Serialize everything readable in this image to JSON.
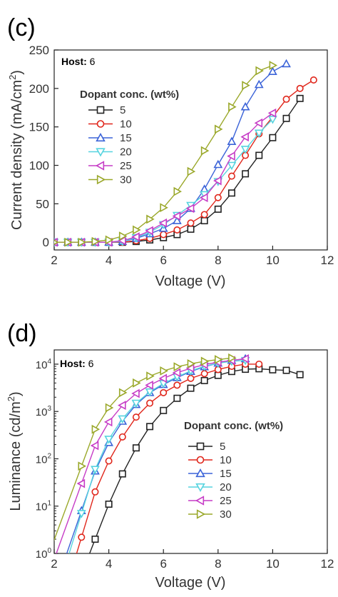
{
  "colors": {
    "5": "#222222",
    "10": "#e0261b",
    "15": "#3b63d8",
    "20": "#57d4df",
    "25": "#c63cc6",
    "30": "#9aa82a"
  },
  "chart_data": [
    {
      "panel": "(c)",
      "type": "line",
      "xlabel": "Voltage (V)",
      "ylabel_main": "Current density (mA/cm",
      "ylabel_sup": "2",
      "ylabel_end": ")",
      "xlim": [
        2,
        12
      ],
      "ylim": [
        -10,
        250
      ],
      "xticks": [
        2,
        4,
        6,
        8,
        10,
        12
      ],
      "yticks": [
        0,
        50,
        100,
        150,
        200,
        250
      ],
      "yscale": "linear",
      "host_label": "Host:",
      "host_value": "6",
      "legend_title": "Dopant conc. (wt%)",
      "series": [
        {
          "name": "5",
          "marker": "square",
          "x": [
            2,
            2.5,
            3,
            3.5,
            4,
            4.5,
            5,
            5.5,
            6,
            6.5,
            7,
            7.5,
            8,
            8.5,
            9,
            9.5,
            10,
            10.5,
            11
          ],
          "y": [
            0,
            0,
            0,
            0,
            0,
            0,
            1,
            3,
            6,
            10,
            17,
            28,
            43,
            64,
            89,
            113,
            136,
            161,
            187
          ]
        },
        {
          "name": "10",
          "marker": "circle",
          "x": [
            2,
            2.5,
            3,
            3.5,
            4,
            4.5,
            5,
            5.5,
            6,
            6.5,
            7,
            7.5,
            8,
            8.5,
            9,
            9.5,
            10,
            10.5,
            11,
            11.5
          ],
          "y": [
            0,
            0,
            0,
            0,
            0,
            0,
            2,
            5,
            10,
            16,
            25,
            36,
            58,
            86,
            113,
            141,
            163,
            186,
            200,
            211
          ]
        },
        {
          "name": "15",
          "marker": "triangle-up",
          "x": [
            2,
            2.5,
            3,
            3.5,
            4,
            4.5,
            5,
            5.5,
            6,
            6.5,
            7,
            7.5,
            8,
            8.5,
            9,
            9.5,
            10,
            10.5
          ],
          "y": [
            0,
            0,
            0,
            0,
            0,
            1,
            5,
            11,
            18,
            28,
            44,
            69,
            101,
            131,
            176,
            205,
            222,
            232
          ]
        },
        {
          "name": "20",
          "marker": "triangle-down",
          "x": [
            2,
            2.5,
            3,
            3.5,
            4,
            4.5,
            5,
            5.5,
            6,
            6.5,
            7,
            7.5,
            8,
            8.5,
            9,
            9.5,
            10
          ],
          "y": [
            0,
            0,
            0,
            0,
            0,
            1,
            6,
            13,
            23,
            35,
            48,
            62,
            79,
            100,
            121,
            142,
            160
          ]
        },
        {
          "name": "25",
          "marker": "triangle-left",
          "x": [
            2,
            2.5,
            3,
            3.5,
            4,
            4.5,
            5,
            5.5,
            6,
            6.5,
            7,
            7.5,
            8,
            8.5,
            9,
            9.5,
            10
          ],
          "y": [
            0,
            0,
            0,
            0,
            0,
            2,
            7,
            15,
            25,
            34,
            44,
            58,
            80,
            112,
            137,
            155,
            168
          ]
        },
        {
          "name": "30",
          "marker": "triangle-right",
          "x": [
            2,
            2.5,
            3,
            3.5,
            4,
            4.5,
            5,
            5.5,
            6,
            6.5,
            7,
            7.5,
            8,
            8.5,
            9,
            9.5,
            10
          ],
          "y": [
            0,
            0,
            0,
            1,
            3,
            8,
            16,
            30,
            45,
            66,
            92,
            119,
            147,
            176,
            204,
            223,
            230
          ]
        }
      ]
    },
    {
      "panel": "(d)",
      "type": "line",
      "xlabel": "Voltage (V)",
      "ylabel_main": "Luminance (cd/m",
      "ylabel_sup": "2",
      "ylabel_end": ")",
      "xlim": [
        2,
        12
      ],
      "ylim": [
        1,
        20000
      ],
      "xticks": [
        2,
        4,
        6,
        8,
        10,
        12
      ],
      "yticks": [
        1,
        10,
        100,
        1000,
        10000
      ],
      "ytick_labels": [
        {
          "base": "10",
          "exp": "0"
        },
        {
          "base": "10",
          "exp": "1"
        },
        {
          "base": "10",
          "exp": "2"
        },
        {
          "base": "10",
          "exp": "3"
        },
        {
          "base": "10",
          "exp": "4"
        }
      ],
      "yscale": "log",
      "host_label": "Host:",
      "host_value": "6",
      "legend_title": "Dopant conc. (wt%)",
      "series": [
        {
          "name": "5",
          "marker": "square",
          "x": [
            3.5,
            4,
            4.5,
            5,
            5.5,
            6,
            6.5,
            7,
            7.5,
            8,
            8.5,
            9,
            9.5,
            10,
            10.5,
            11
          ],
          "y": [
            2,
            11,
            48,
            170,
            480,
            1050,
            1900,
            3100,
            4500,
            5800,
            7000,
            7800,
            8000,
            7600,
            7400,
            6000
          ]
        },
        {
          "name": "10",
          "marker": "circle",
          "x": [
            3,
            3.5,
            4,
            4.5,
            5,
            5.5,
            6,
            6.5,
            7,
            7.5,
            8,
            8.5,
            9,
            9.5
          ],
          "y": [
            2.2,
            20,
            90,
            290,
            760,
            1500,
            2500,
            3600,
            5000,
            6300,
            7700,
            9000,
            10000,
            10000
          ]
        },
        {
          "name": "15",
          "marker": "triangle-up",
          "x": [
            3,
            3.5,
            4,
            4.5,
            5,
            5.5,
            6,
            6.5,
            7,
            7.5,
            8,
            8.5,
            9
          ],
          "y": [
            8,
            55,
            220,
            620,
            1400,
            2500,
            3700,
            5200,
            7000,
            8800,
            10500,
            12000,
            13000
          ]
        },
        {
          "name": "20",
          "marker": "triangle-down",
          "x": [
            3,
            3.5,
            4,
            4.5,
            5,
            5.5,
            6,
            6.5,
            7,
            7.5,
            8,
            8.5,
            9
          ],
          "y": [
            7,
            60,
            260,
            700,
            1500,
            2600,
            3900,
            5400,
            7200,
            9000,
            10500,
            11500,
            12000
          ]
        },
        {
          "name": "25",
          "marker": "triangle-left",
          "x": [
            3,
            3.5,
            4,
            4.5,
            5,
            5.5,
            6,
            6.5,
            7,
            7.5,
            8,
            8.5,
            9
          ],
          "y": [
            30,
            190,
            600,
            1350,
            2400,
            3600,
            5000,
            6600,
            8200,
            9800,
            11000,
            12000,
            13000
          ]
        },
        {
          "name": "30",
          "marker": "triangle-right",
          "x": [
            3,
            3.5,
            4,
            4.5,
            5,
            5.5,
            6,
            6.5,
            7,
            7.5,
            8,
            8.5
          ],
          "y": [
            70,
            420,
            1200,
            2500,
            4000,
            5600,
            7200,
            8800,
            10200,
            11500,
            12500,
            13500
          ]
        }
      ]
    }
  ]
}
